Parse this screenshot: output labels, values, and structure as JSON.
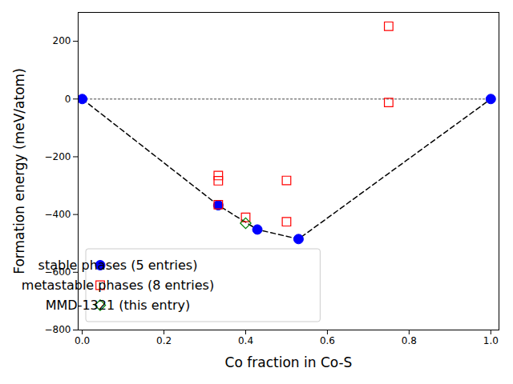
{
  "chart_data": {
    "type": "scatter",
    "xlabel": "Co fraction in Co-S",
    "ylabel": "Formation energy (meV/atom)",
    "xlim": [
      -0.01,
      1.02
    ],
    "ylim": [
      -800,
      300
    ],
    "xticks": [
      {
        "value": 0,
        "label": "0.0"
      },
      0.2,
      0.4,
      0.6,
      0.8,
      {
        "value": 1,
        "label": "1.0"
      }
    ],
    "yticks": [
      -800,
      -600,
      -400,
      -200,
      0,
      200
    ],
    "grid": false,
    "legend": "lower left",
    "series": [
      {
        "type": "line",
        "color": "gray",
        "line_style": "dotted",
        "x": [
          0,
          1
        ],
        "values": [
          0,
          0
        ]
      },
      {
        "type": "line",
        "color": "black",
        "line_style": "dashed",
        "x": [
          0,
          0.333,
          0.4286,
          0.5294,
          1
        ],
        "values": [
          0,
          -368,
          -452,
          -485,
          0
        ]
      },
      {
        "name": "stable phases (5 entries)",
        "type": "scatter",
        "color": "#0000ff",
        "marker": "circle",
        "x": [
          0,
          0.333,
          0.4286,
          0.5294,
          1
        ],
        "values": [
          0,
          -368,
          -452,
          -485,
          0
        ]
      },
      {
        "name": "metastable phases (8 entries)",
        "type": "scatter",
        "color": "#ff0000",
        "marker": "open-square",
        "x": [
          0.333,
          0.333,
          0.333,
          0.4,
          0.5,
          0.5,
          0.75,
          0.75
        ],
        "values": [
          -265,
          -283,
          -366,
          -410,
          -282,
          -425,
          252,
          -12
        ]
      },
      {
        "name": "MMD-1321 (this entry)",
        "type": "scatter",
        "color": "#008000",
        "marker": "open-diamond",
        "x": [
          0.4
        ],
        "values": [
          -430
        ]
      }
    ]
  }
}
